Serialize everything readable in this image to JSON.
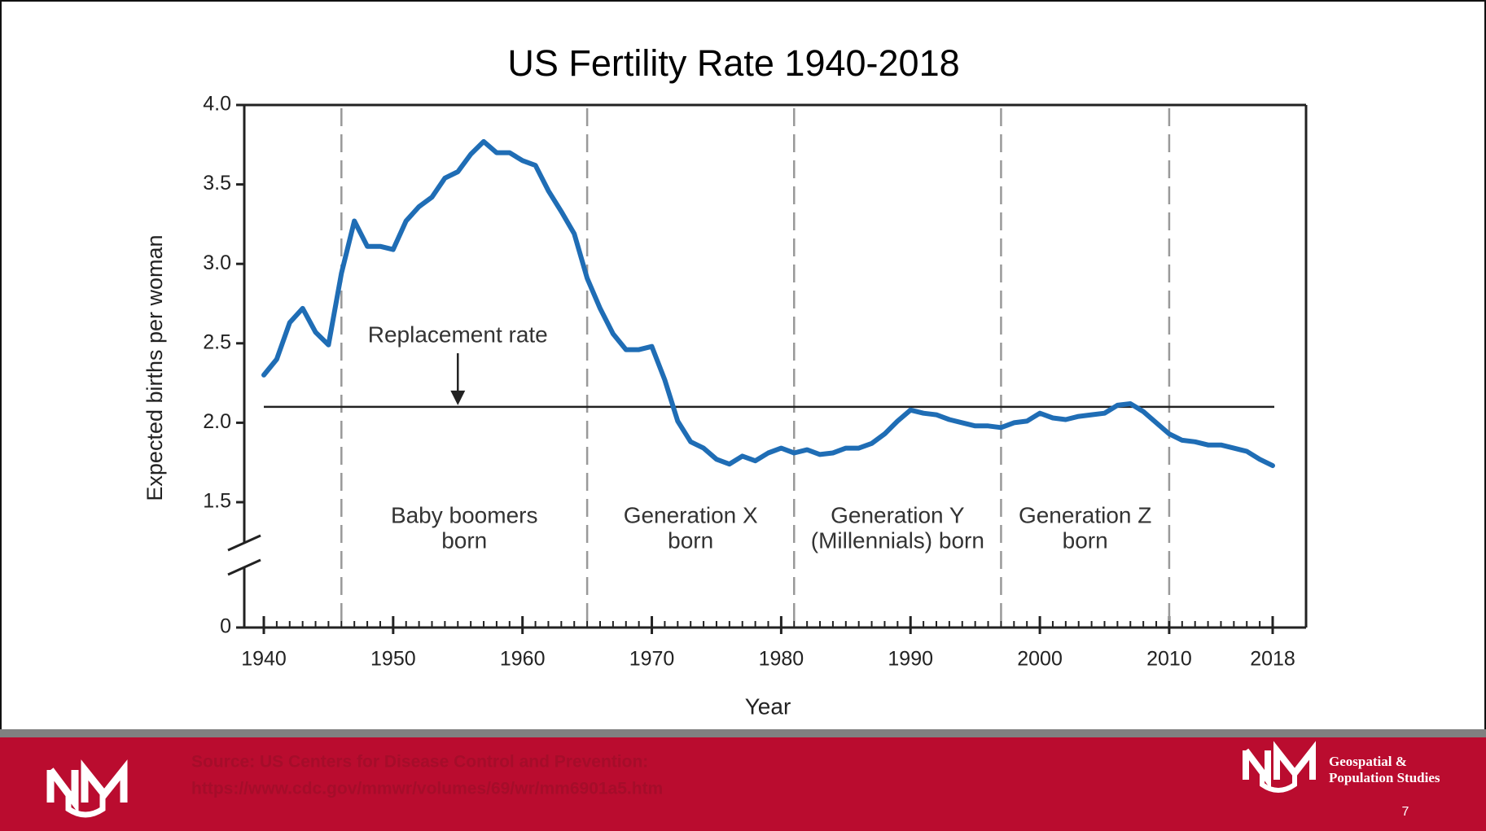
{
  "chart_data": {
    "type": "line",
    "title": "US Fertility Rate 1940-2018",
    "xlabel": "Year",
    "ylabel": "Expected births per woman",
    "x": [
      1940,
      1941,
      1942,
      1943,
      1944,
      1945,
      1946,
      1947,
      1948,
      1949,
      1950,
      1951,
      1952,
      1953,
      1954,
      1955,
      1956,
      1957,
      1958,
      1959,
      1960,
      1961,
      1962,
      1963,
      1964,
      1965,
      1966,
      1967,
      1968,
      1969,
      1970,
      1971,
      1972,
      1973,
      1974,
      1975,
      1976,
      1977,
      1978,
      1979,
      1980,
      1981,
      1982,
      1983,
      1984,
      1985,
      1986,
      1987,
      1988,
      1989,
      1990,
      1991,
      1992,
      1993,
      1994,
      1995,
      1996,
      1997,
      1998,
      1999,
      2000,
      2001,
      2002,
      2003,
      2004,
      2005,
      2006,
      2007,
      2008,
      2009,
      2010,
      2011,
      2012,
      2013,
      2014,
      2015,
      2016,
      2017,
      2018
    ],
    "series": [
      {
        "name": "Fertility rate",
        "color": "#1f6db5",
        "values": [
          2.3,
          2.4,
          2.63,
          2.72,
          2.57,
          2.49,
          2.94,
          3.27,
          3.11,
          3.11,
          3.09,
          3.27,
          3.36,
          3.42,
          3.54,
          3.58,
          3.69,
          3.77,
          3.7,
          3.7,
          3.65,
          3.62,
          3.46,
          3.33,
          3.19,
          2.91,
          2.72,
          2.56,
          2.46,
          2.46,
          2.48,
          2.27,
          2.01,
          1.88,
          1.84,
          1.77,
          1.74,
          1.79,
          1.76,
          1.81,
          1.84,
          1.81,
          1.83,
          1.8,
          1.81,
          1.84,
          1.84,
          1.87,
          1.93,
          2.01,
          2.08,
          2.06,
          2.05,
          2.02,
          2.0,
          1.98,
          1.98,
          1.97,
          2.0,
          2.01,
          2.06,
          2.03,
          2.02,
          2.04,
          2.05,
          2.06,
          2.11,
          2.12,
          2.07,
          2.0,
          1.93,
          1.89,
          1.88,
          1.86,
          1.86,
          1.84,
          1.82,
          1.77,
          1.73
        ]
      }
    ],
    "xlim": [
      1940,
      2018
    ],
    "xticks": [
      1940,
      1950,
      1960,
      1970,
      1980,
      1990,
      2000,
      2010,
      2018
    ],
    "ylim": [
      0,
      4.0
    ],
    "yticks": [
      0,
      1.5,
      {
        "value": 2,
        "label": "2.0"
      },
      2.5,
      {
        "value": 3,
        "label": "3.0"
      },
      3.5,
      {
        "value": 4,
        "label": "4.0"
      }
    ],
    "y_break": true,
    "reference_line": {
      "value": 2.1,
      "label": "Replacement rate",
      "arrow_x": 1955
    },
    "dividers": [
      1946,
      1965,
      1981,
      1997,
      2010
    ],
    "generations": [
      [
        "Baby boomers",
        "born"
      ],
      [
        "Generation X",
        "born"
      ],
      [
        "Generation Y",
        "(Millennials) born"
      ],
      [
        "Generation Z",
        "born"
      ]
    ]
  },
  "footer": {
    "source": [
      "Source: US Centers for Disease Control and Prevention:",
      "https://www.cdc.gov/mmwr/volumes/69/wr/mm6901a5.htm"
    ],
    "org": [
      "Geospatial &",
      "Population Studies"
    ],
    "page_number": "7"
  }
}
